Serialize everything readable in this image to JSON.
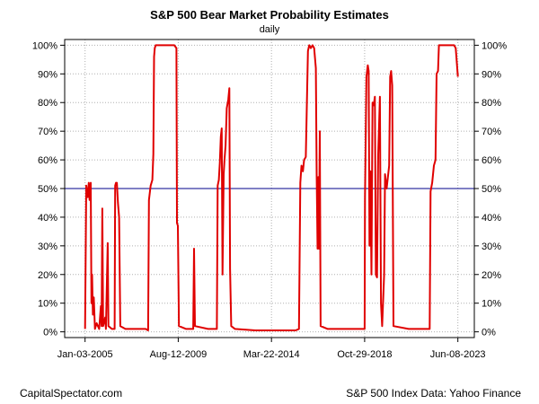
{
  "chart_data": {
    "type": "line",
    "title": "S&P 500 Bear Market Probability Estimates",
    "subtitle": "daily",
    "xlabel": "",
    "ylabel": "",
    "x_ticks": [
      "Jan-03-2005",
      "Aug-12-2009",
      "Mar-22-2014",
      "Oct-29-2018",
      "Jun-08-2023"
    ],
    "y_ticks": [
      "0%",
      "10%",
      "20%",
      "30%",
      "40%",
      "50%",
      "60%",
      "70%",
      "80%",
      "90%",
      "100%"
    ],
    "ylim": [
      -0.02,
      1.02
    ],
    "xlim": [
      "2004-01-01",
      "2024-03-31"
    ],
    "grid": true,
    "reference_line": {
      "value": 0.5,
      "color": "#00008b"
    },
    "series": [
      {
        "color": "#e00000",
        "points": [
          [
            "2005-01-03",
            0.01
          ],
          [
            "2005-01-25",
            0.51
          ],
          [
            "2005-02-20",
            0.47
          ],
          [
            "2005-03-10",
            0.52
          ],
          [
            "2005-03-25",
            0.46
          ],
          [
            "2005-04-15",
            0.52
          ],
          [
            "2005-04-28",
            0.1
          ],
          [
            "2005-05-10",
            0.2
          ],
          [
            "2005-05-25",
            0.06
          ],
          [
            "2005-06-10",
            0.12
          ],
          [
            "2005-07-01",
            0.01
          ],
          [
            "2005-08-01",
            0.03
          ],
          [
            "2005-09-15",
            0.01
          ],
          [
            "2005-10-15",
            0.09
          ],
          [
            "2005-10-28",
            0.02
          ],
          [
            "2005-11-10",
            0.43
          ],
          [
            "2005-11-25",
            0.02
          ],
          [
            "2006-01-01",
            0.05
          ],
          [
            "2006-01-15",
            0.01
          ],
          [
            "2006-02-15",
            0.31
          ],
          [
            "2006-03-01",
            0.02
          ],
          [
            "2006-05-01",
            0.01
          ],
          [
            "2006-06-20",
            0.01
          ],
          [
            "2006-07-01",
            0.51
          ],
          [
            "2006-07-15",
            0.52
          ],
          [
            "2006-08-01",
            0.52
          ],
          [
            "2006-08-20",
            0.45
          ],
          [
            "2006-09-10",
            0.4
          ],
          [
            "2006-10-01",
            0.02
          ],
          [
            "2007-01-01",
            0.01
          ],
          [
            "2008-01-01",
            0.01
          ],
          [
            "2008-02-15",
            0.005
          ],
          [
            "2008-03-01",
            0.46
          ],
          [
            "2008-04-01",
            0.51
          ],
          [
            "2008-05-01",
            0.53
          ],
          [
            "2008-05-20",
            0.62
          ],
          [
            "2008-06-01",
            0.96
          ],
          [
            "2008-06-15",
            0.99
          ],
          [
            "2008-07-01",
            1.0
          ],
          [
            "2009-01-01",
            1.0
          ],
          [
            "2009-06-01",
            1.0
          ],
          [
            "2009-07-10",
            0.99
          ],
          [
            "2009-07-20",
            0.38
          ],
          [
            "2009-08-05",
            0.37
          ],
          [
            "2009-08-25",
            0.02
          ],
          [
            "2010-01-01",
            0.01
          ],
          [
            "2010-05-10",
            0.01
          ],
          [
            "2010-05-25",
            0.29
          ],
          [
            "2010-06-10",
            0.02
          ],
          [
            "2011-02-01",
            0.01
          ],
          [
            "2011-07-10",
            0.01
          ],
          [
            "2011-07-25",
            0.51
          ],
          [
            "2011-08-15",
            0.53
          ],
          [
            "2011-09-01",
            0.59
          ],
          [
            "2011-09-20",
            0.68
          ],
          [
            "2011-10-05",
            0.71
          ],
          [
            "2011-10-20",
            0.2
          ],
          [
            "2011-11-10",
            0.55
          ],
          [
            "2011-11-25",
            0.6
          ],
          [
            "2011-12-15",
            0.65
          ],
          [
            "2012-01-05",
            0.78
          ],
          [
            "2012-02-01",
            0.81
          ],
          [
            "2012-02-20",
            0.85
          ],
          [
            "2012-03-05",
            0.22
          ],
          [
            "2012-03-25",
            0.02
          ],
          [
            "2012-06-01",
            0.01
          ],
          [
            "2013-06-01",
            0.005
          ],
          [
            "2014-06-01",
            0.005
          ],
          [
            "2015-06-01",
            0.005
          ],
          [
            "2015-08-01",
            0.01
          ],
          [
            "2015-08-25",
            0.52
          ],
          [
            "2015-09-15",
            0.58
          ],
          [
            "2015-10-10",
            0.56
          ],
          [
            "2015-11-01",
            0.6
          ],
          [
            "2015-12-01",
            0.61
          ],
          [
            "2016-01-10",
            0.98
          ],
          [
            "2016-02-01",
            1.0
          ],
          [
            "2016-03-01",
            0.99
          ],
          [
            "2016-04-01",
            1.0
          ],
          [
            "2016-05-01",
            0.99
          ],
          [
            "2016-06-01",
            0.92
          ],
          [
            "2016-06-15",
            0.55
          ],
          [
            "2016-07-01",
            0.29
          ],
          [
            "2016-07-15",
            0.54
          ],
          [
            "2016-07-25",
            0.29
          ],
          [
            "2016-08-10",
            0.7
          ],
          [
            "2016-08-25",
            0.02
          ],
          [
            "2017-01-01",
            0.01
          ],
          [
            "2018-01-01",
            0.01
          ],
          [
            "2018-10-29",
            0.01
          ],
          [
            "2018-11-05",
            0.47
          ],
          [
            "2018-12-01",
            0.89
          ],
          [
            "2018-12-25",
            0.93
          ],
          [
            "2019-01-10",
            0.91
          ],
          [
            "2019-01-25",
            0.3
          ],
          [
            "2019-02-10",
            0.56
          ],
          [
            "2019-03-01",
            0.2
          ],
          [
            "2019-03-20",
            0.8
          ],
          [
            "2019-04-10",
            0.79
          ],
          [
            "2019-05-01",
            0.82
          ],
          [
            "2019-05-20",
            0.2
          ],
          [
            "2019-06-10",
            0.19
          ],
          [
            "2019-07-01",
            0.62
          ],
          [
            "2019-08-01",
            0.82
          ],
          [
            "2019-08-20",
            0.1
          ],
          [
            "2019-09-10",
            0.02
          ],
          [
            "2019-10-15",
            0.2
          ],
          [
            "2019-11-01",
            0.55
          ],
          [
            "2019-12-01",
            0.5
          ],
          [
            "2020-01-15",
            0.58
          ],
          [
            "2020-02-01",
            0.89
          ],
          [
            "2020-02-20",
            0.91
          ],
          [
            "2020-03-10",
            0.86
          ],
          [
            "2020-04-01",
            0.02
          ],
          [
            "2021-01-01",
            0.01
          ],
          [
            "2022-01-15",
            0.01
          ],
          [
            "2022-02-01",
            0.49
          ],
          [
            "2022-03-01",
            0.52
          ],
          [
            "2022-04-01",
            0.58
          ],
          [
            "2022-05-01",
            0.6
          ],
          [
            "2022-05-20",
            0.9
          ],
          [
            "2022-06-15",
            0.91
          ],
          [
            "2022-07-01",
            1.0
          ],
          [
            "2022-10-01",
            1.0
          ],
          [
            "2023-01-01",
            1.0
          ],
          [
            "2023-04-01",
            1.0
          ],
          [
            "2023-05-01",
            0.99
          ],
          [
            "2023-06-08",
            0.89
          ]
        ]
      }
    ]
  },
  "footer": {
    "left": "CapitalSpectator.com",
    "right": "S&P 500 Index Data: Yahoo Finance"
  }
}
